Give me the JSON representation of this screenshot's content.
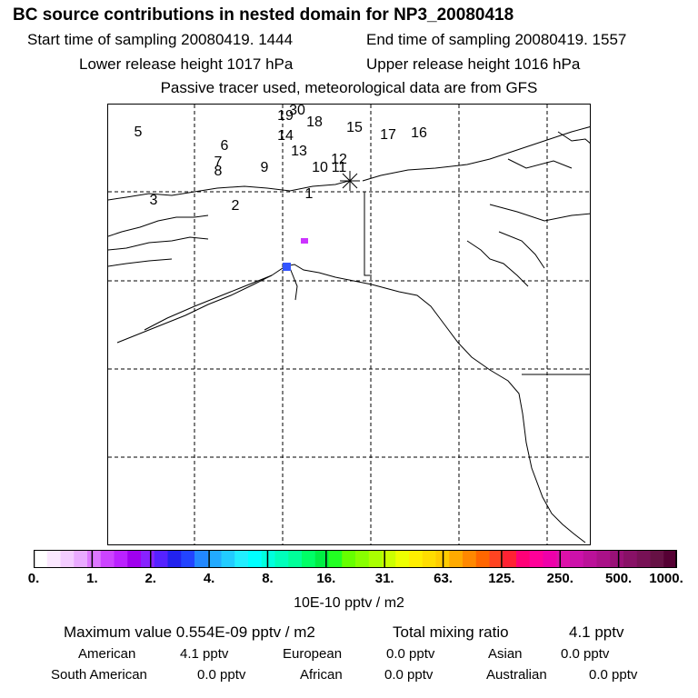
{
  "header": {
    "title": "BC  source contributions in nested domain for NP3_20080418",
    "start_time": "Start time of sampling 20080419.  1444",
    "end_time": "End time of sampling 20080419.  1557",
    "lower_release": "Lower release height 1017 hPa",
    "upper_release": "Upper release height 1016 hPa",
    "tracer_note": "Passive tracer used, meteorological data are from GFS"
  },
  "chart_data": {
    "type": "heatmap",
    "title": "BC  source contributions in nested domain for NP3_20080418",
    "release_labels": [
      "1",
      "2",
      "3",
      "5",
      "6",
      "7",
      "8",
      "9",
      "10",
      "11",
      "12",
      "13",
      "14",
      "15",
      "16",
      "17",
      "18",
      "19",
      "30"
    ],
    "hot_spots": [
      {
        "level": "2.",
        "color": "#cc33ff"
      },
      {
        "level": "4.",
        "color": "#3355ff"
      }
    ],
    "colorbar": {
      "tick_labels": [
        "0.",
        "1.",
        "2.",
        "4.",
        "8.",
        "16.",
        "31.",
        "63.",
        "125.",
        "250.",
        "500.",
        "1000."
      ],
      "colors": [
        "#ffffff",
        "#fbe8ff",
        "#f3ccff",
        "#e9aaff",
        "#dd77ff",
        "#cc44ff",
        "#bb22ff",
        "#a000ee",
        "#8822ff",
        "#5522ff",
        "#2222ee",
        "#2244ff",
        "#2288ff",
        "#22aaff",
        "#22ccff",
        "#22eeff",
        "#00ffff",
        "#00ffdd",
        "#00ffbb",
        "#00ff99",
        "#00ff66",
        "#00ee44",
        "#22ff22",
        "#66ff00",
        "#88ff00",
        "#aaff00",
        "#ccff00",
        "#eeff00",
        "#ffee00",
        "#ffdd00",
        "#ffcc00",
        "#ffaa00",
        "#ff8800",
        "#ff6600",
        "#ff4422",
        "#ff2233",
        "#ff0077",
        "#ff0099",
        "#ee00aa",
        "#dd11aa",
        "#cc11aa",
        "#bb1199",
        "#aa1188",
        "#991177",
        "#881166",
        "#771155",
        "#661144",
        "#550033"
      ],
      "units": "10E-10 pptv / m2"
    }
  },
  "summary": {
    "max_value_label": "Maximum value  0.554E-09 pptv / m2",
    "total_label": "Total mixing ratio",
    "total_value": "4.1 pptv",
    "regions": [
      {
        "name": "American",
        "value": "4.1 pptv"
      },
      {
        "name": "European",
        "value": "0.0 pptv"
      },
      {
        "name": "Asian",
        "value": "0.0 pptv"
      },
      {
        "name": "South American",
        "value": "0.0 pptv"
      },
      {
        "name": "African",
        "value": "0.0 pptv"
      },
      {
        "name": "Australian",
        "value": "0.0 pptv"
      }
    ]
  }
}
